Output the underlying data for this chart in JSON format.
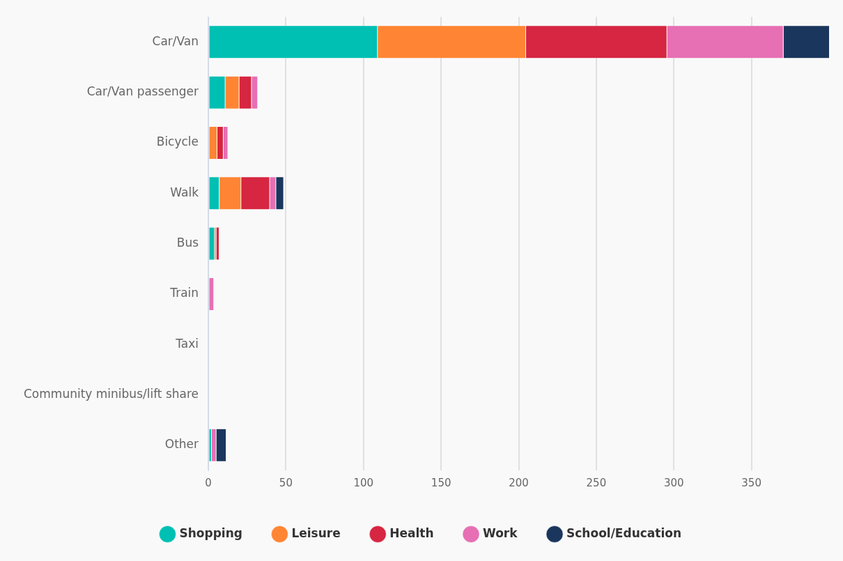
{
  "chart_data": {
    "type": "bar",
    "orientation": "horizontal",
    "stacked": true,
    "categories": [
      "Car/Van",
      "Car/Van passenger",
      "Bicycle",
      "Walk",
      "Bus",
      "Train",
      "Taxi",
      "Community minibus/lift share",
      "Other"
    ],
    "series": [
      {
        "name": "Shopping",
        "color": "#00bfb3",
        "values": [
          109,
          10.8,
          null,
          7,
          4,
          null,
          null,
          null,
          2
        ]
      },
      {
        "name": "Leisure",
        "color": "#ff8534",
        "values": [
          95.5,
          9,
          5.6,
          14,
          1,
          null,
          null,
          null,
          null
        ]
      },
      {
        "name": "Health",
        "color": "#d62641",
        "values": [
          91,
          8,
          4,
          18.5,
          2,
          null,
          null,
          null,
          null
        ]
      },
      {
        "name": "Work",
        "color": "#e76fb4",
        "values": [
          75,
          4,
          3,
          4,
          null,
          3.5,
          null,
          null,
          3
        ]
      },
      {
        "name": "School/Education",
        "color": "#1b365d",
        "values": [
          30,
          null,
          null,
          5,
          null,
          null,
          null,
          null,
          6.5
        ]
      }
    ],
    "xlim": [
      0,
      400
    ],
    "xticks": [
      0,
      50,
      100,
      150,
      200,
      250,
      300,
      350
    ],
    "grid": "x",
    "legend": "bottom"
  }
}
